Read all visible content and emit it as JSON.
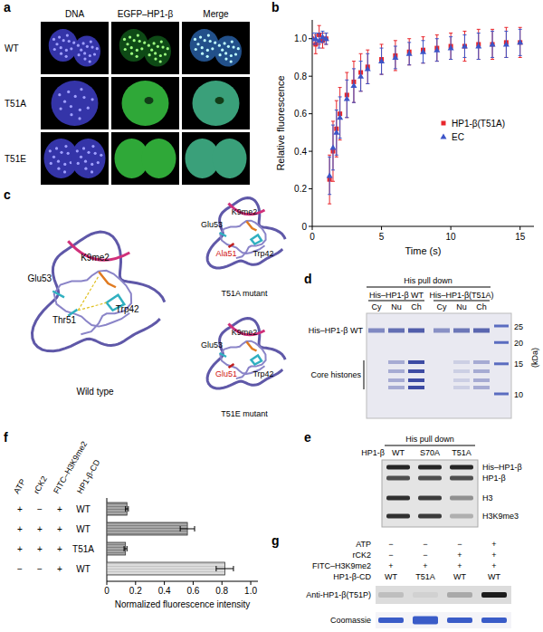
{
  "panel_labels": [
    "a",
    "b",
    "c",
    "d",
    "e",
    "f",
    "g"
  ],
  "panel_a": {
    "columns": [
      "DNA",
      "EGFP–HP1-β",
      "Merge"
    ],
    "rows": [
      "WT",
      "T51A",
      "T51E"
    ]
  },
  "chart_data": [
    {
      "type": "scatter",
      "x_label": "Time (s)",
      "y_label": "Relative fluorescence",
      "x": [
        0,
        0.25,
        0.5,
        0.75,
        1,
        1.25,
        1.5,
        1.75,
        2,
        2.5,
        3,
        3.5,
        4,
        5,
        6,
        7,
        8,
        9,
        10,
        11,
        12,
        13,
        14,
        15
      ],
      "xlim": [
        0,
        16
      ],
      "ylim": [
        0,
        1.1
      ],
      "xticks": [
        0,
        5,
        10,
        15
      ],
      "yticks": [
        0,
        0.2,
        0.4,
        0.6,
        0.8,
        {
          "value": 1,
          "label": "1.0"
        }
      ],
      "legend": "right",
      "series": [
        {
          "name": "HP1-β(T51A)",
          "color": "#e8262c",
          "marker": "square",
          "values": [
            1,
            0.97,
            1.02,
            0.99,
            1,
            0.25,
            0.4,
            0.52,
            0.6,
            0.7,
            0.77,
            0.82,
            0.85,
            0.89,
            0.91,
            0.93,
            0.94,
            0.95,
            0.96,
            0.96,
            0.97,
            0.97,
            0.98,
            0.98
          ],
          "errors": [
            0.03,
            0.05,
            0.05,
            0.04,
            0.03,
            0.13,
            0.16,
            0.15,
            0.14,
            0.12,
            0.11,
            0.1,
            0.09,
            0.08,
            0.08,
            0.07,
            0.07,
            0.07,
            0.07,
            0.08,
            0.08,
            0.08,
            0.08,
            0.08
          ]
        },
        {
          "name": "EC",
          "color": "#3d55c8",
          "marker": "triangle",
          "values": [
            1,
            1,
            0.99,
            1.01,
            1,
            0.27,
            0.42,
            0.5,
            0.58,
            0.68,
            0.75,
            0.8,
            0.84,
            0.88,
            0.9,
            0.92,
            0.93,
            0.94,
            0.95,
            0.96,
            0.96,
            0.97,
            0.97,
            0.98
          ],
          "errors": [
            0.03,
            0.03,
            0.04,
            0.03,
            0.03,
            0.1,
            0.12,
            0.12,
            0.11,
            0.1,
            0.09,
            0.08,
            0.08,
            0.07,
            0.06,
            0.06,
            0.06,
            0.06,
            0.06,
            0.06,
            0.07,
            0.07,
            0.07,
            0.07
          ]
        }
      ]
    },
    {
      "type": "bar",
      "orientation": "horizontal",
      "x_label": "Normalized fluorescence intensity",
      "categories": [
        null,
        null,
        null,
        null
      ],
      "values": [
        0.14,
        0.56,
        0.13,
        0.82
      ],
      "errors": [
        0.01,
        0.05,
        0.01,
        0.06
      ],
      "colors": [
        "#a8a8a8",
        "#a8a8a8",
        "#a8a8a8",
        "#dcdcdc"
      ],
      "xlim": [
        0,
        1.05
      ],
      "xticks": [
        0,
        0.2,
        0.4,
        0.6,
        0.8,
        {
          "value": 1,
          "label": "1.0"
        }
      ],
      "conditions": {
        "labels": [
          "ATP",
          "rCK2",
          "FITC–H3K9me2",
          "HP1-β-CD"
        ],
        "values": [
          [
            "+",
            "−",
            "+",
            "WT"
          ],
          [
            "+",
            "+",
            "+",
            "WT"
          ],
          [
            "+",
            "+",
            "+",
            "T51A"
          ],
          [
            "−",
            "−",
            "+",
            "WT"
          ]
        ]
      }
    }
  ],
  "panel_c": {
    "structures": [
      {
        "title": "Wild type",
        "peptide": "K9me2",
        "glu": "Glu53",
        "residue51": "Thr51",
        "trp": "Trp42"
      },
      {
        "title": "T51A mutant",
        "peptide": "K9me2",
        "glu": "Glu53",
        "residue51": "Ala51",
        "trp": "Trp42"
      },
      {
        "title": "T51E mutant",
        "peptide": "K9me2",
        "glu": "Glu53",
        "residue51": "Glu51",
        "trp": "Trp42"
      }
    ]
  },
  "panel_d": {
    "header": "His pull down",
    "groups": [
      "His–HP1-β WT",
      "His–HP1-β(T51A)"
    ],
    "lanes": [
      "Cy",
      "Nu",
      "Ch"
    ],
    "left_labels": [
      "His–HP1-β WT",
      "Core histones"
    ],
    "marker_unit": "(kDa)",
    "markers": [
      25,
      20,
      15,
      10
    ]
  },
  "panel_e": {
    "header": "His pull down",
    "lane_title": "HP1-β",
    "lanes": [
      "WT",
      "S70A",
      "T51A"
    ],
    "bands": [
      "His–HP1-β",
      "HP1-β",
      "H3",
      "H3K9me3"
    ]
  },
  "panel_g": {
    "rows": [
      {
        "label": "ATP",
        "values": [
          "−",
          "−",
          "−",
          "+"
        ]
      },
      {
        "label": "rCK2",
        "values": [
          "−",
          "−",
          "+",
          "+"
        ]
      },
      {
        "label": "FITC–H3K9me2",
        "values": [
          "+",
          "+",
          "+",
          "+"
        ]
      },
      {
        "label": "HP1-β-CD",
        "values": [
          "WT",
          "T51A",
          "WT",
          "WT"
        ]
      }
    ],
    "blots": [
      "Anti-HP1-β(T51P)",
      "Coomassie"
    ]
  }
}
